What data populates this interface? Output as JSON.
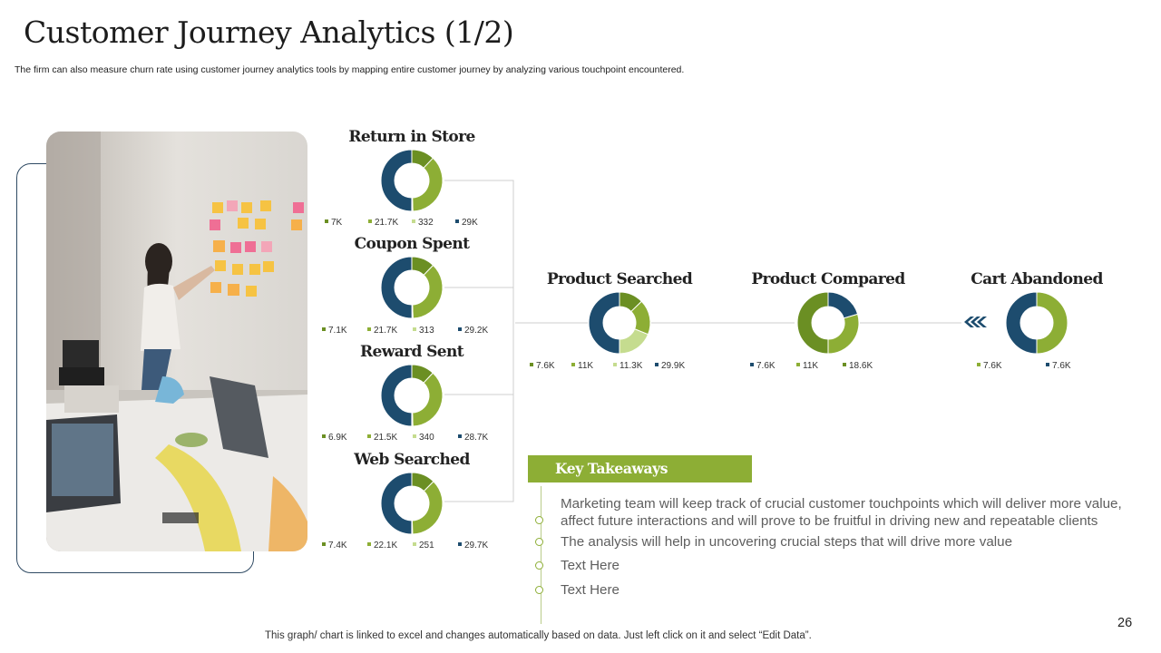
{
  "slide": {
    "title": "Customer Journey Analytics (1/2)",
    "subtitle": "The firm can also measure churn rate using customer journey analytics tools by mapping entire customer journey by analyzing various touchpoint encountered.",
    "footer": "This graph/ chart is linked to excel and changes automatically based on data. Just left click on it and select “Edit Data”.",
    "page_number": "26"
  },
  "colors": {
    "dark_olive": "#6b8f23",
    "olive": "#8dae35",
    "light_green": "#c5dc8f",
    "navy": "#1d4c6e",
    "accent": "#8dae35",
    "frame": "#2f4a63"
  },
  "chart_data": [
    {
      "type": "pie",
      "style": "donut",
      "title": "Return in Store",
      "categories": [
        "7K",
        "21.7K",
        "332",
        "29K"
      ],
      "values": [
        7000,
        21700,
        332,
        29000
      ],
      "colors": [
        "#6b8f23",
        "#8dae35",
        "#c5dc8f",
        "#1d4c6e"
      ],
      "legend": "bottom"
    },
    {
      "type": "pie",
      "style": "donut",
      "title": "Coupon Spent",
      "categories": [
        "7.1K",
        "21.7K",
        "313",
        "29.2K"
      ],
      "values": [
        7100,
        21700,
        313,
        29200
      ],
      "colors": [
        "#6b8f23",
        "#8dae35",
        "#c5dc8f",
        "#1d4c6e"
      ],
      "legend": "bottom"
    },
    {
      "type": "pie",
      "style": "donut",
      "title": "Reward Sent",
      "categories": [
        "6.9K",
        "21.5K",
        "340",
        "28.7K"
      ],
      "values": [
        6900,
        21500,
        340,
        28700
      ],
      "colors": [
        "#6b8f23",
        "#8dae35",
        "#c5dc8f",
        "#1d4c6e"
      ],
      "legend": "bottom"
    },
    {
      "type": "pie",
      "style": "donut",
      "title": "Web Searched",
      "categories": [
        "7.4K",
        "22.1K",
        "251",
        "29.7K"
      ],
      "values": [
        7400,
        22100,
        251,
        29700
      ],
      "colors": [
        "#6b8f23",
        "#8dae35",
        "#c5dc8f",
        "#1d4c6e"
      ],
      "legend": "bottom"
    },
    {
      "type": "pie",
      "style": "donut",
      "title": "Product Searched",
      "categories": [
        "7.6K",
        "11K",
        "11.3K",
        "29.9K"
      ],
      "values": [
        7600,
        11000,
        11300,
        29900
      ],
      "colors": [
        "#6b8f23",
        "#8dae35",
        "#c5dc8f",
        "#1d4c6e"
      ],
      "legend": "bottom"
    },
    {
      "type": "pie",
      "style": "donut",
      "title": "Product Compared",
      "categories": [
        "7.6K",
        "11K",
        "18.6K"
      ],
      "values": [
        7600,
        11000,
        18600
      ],
      "colors": [
        "#1d4c6e",
        "#8dae35",
        "#6b8f23"
      ],
      "legend": "bottom"
    },
    {
      "type": "pie",
      "style": "donut",
      "title": "Cart Abandoned",
      "categories": [
        "7.6K",
        "7.6K"
      ],
      "values": [
        7600,
        7600
      ],
      "colors": [
        "#8dae35",
        "#1d4c6e"
      ],
      "legend": "bottom"
    }
  ],
  "takeaways": {
    "heading": "Key Takeaways",
    "items": [
      "Marketing team will keep track of crucial customer touchpoints which will deliver more value, affect future interactions and will prove to be fruitful in driving new and repeatable clients",
      "The analysis will help in uncovering crucial steps that will drive more value",
      "Text Here",
      "Text Here"
    ]
  }
}
